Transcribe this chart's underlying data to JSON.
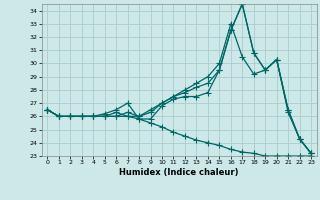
{
  "xlabel": "Humidex (Indice chaleur)",
  "bg_color": "#cce8e8",
  "grid_color": "#aacccc",
  "line_color": "#006666",
  "marker": "+",
  "markersize": 4,
  "linewidth": 0.9,
  "xlim": [
    -0.5,
    23.5
  ],
  "ylim": [
    23,
    34.5
  ],
  "xticks": [
    0,
    1,
    2,
    3,
    4,
    5,
    6,
    7,
    8,
    9,
    10,
    11,
    12,
    13,
    14,
    15,
    16,
    17,
    18,
    19,
    20,
    21,
    22,
    23
  ],
  "yticks": [
    23,
    24,
    25,
    26,
    27,
    28,
    29,
    30,
    31,
    32,
    33,
    34
  ],
  "series": [
    [
      26.5,
      26.0,
      26.0,
      26.0,
      26.0,
      26.0,
      26.3,
      26.0,
      26.0,
      26.3,
      27.0,
      27.5,
      28.0,
      28.5,
      29.0,
      30.0,
      33.0,
      30.5,
      29.2,
      29.5,
      30.3,
      26.3,
      24.3,
      23.2
    ],
    [
      26.5,
      26.0,
      26.0,
      26.0,
      26.0,
      26.0,
      26.0,
      26.3,
      26.0,
      26.5,
      27.0,
      27.5,
      27.8,
      28.2,
      28.5,
      29.5,
      32.5,
      34.5,
      30.8,
      29.5,
      30.3,
      26.5,
      24.3,
      23.2
    ],
    [
      26.5,
      26.0,
      26.0,
      26.0,
      26.0,
      26.2,
      26.5,
      27.0,
      25.8,
      25.8,
      26.8,
      27.3,
      27.5,
      27.5,
      27.8,
      29.5,
      32.5,
      34.5,
      30.8,
      29.5,
      30.3,
      26.5,
      24.3,
      23.2
    ],
    [
      26.5,
      26.0,
      26.0,
      26.0,
      26.0,
      26.0,
      26.0,
      26.0,
      25.8,
      25.5,
      25.2,
      24.8,
      24.5,
      24.2,
      24.0,
      23.8,
      23.5,
      23.3,
      23.2,
      23.0,
      23.0,
      23.0,
      23.0,
      23.0
    ]
  ]
}
